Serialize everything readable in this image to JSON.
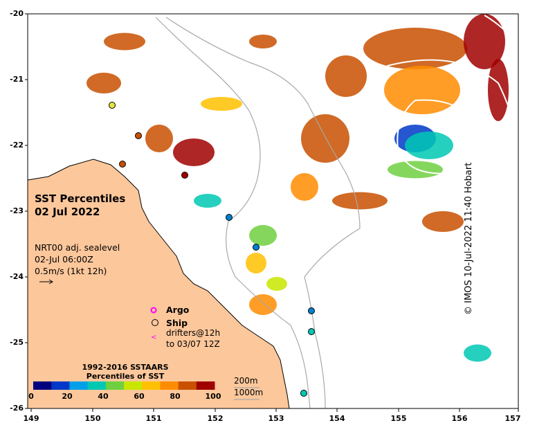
{
  "title": [
    "SST Percentiles",
    "02 Jul 2022"
  ],
  "info": {
    "line1": "NRT00 adj. sealevel",
    "line2": "02-Jul 06:00Z",
    "line3": "0.5m/s (1kt 12h)"
  },
  "legend": {
    "argo": "Argo",
    "ship": "Ship",
    "drifters_1": "drifters@12h",
    "drifters_2": "to 03/07 12Z"
  },
  "colorbar": {
    "title_1": "1992-2016 SSTAARS",
    "title_2": "Percentiles of SST",
    "labels": [
      "0",
      "20",
      "40",
      "60",
      "80",
      "100"
    ],
    "colors": [
      "#00007f",
      "#0038c8",
      "#00a0e8",
      "#00c8b4",
      "#6ed040",
      "#c8e600",
      "#ffc000",
      "#ff8c00",
      "#c85000",
      "#a00000"
    ]
  },
  "depth_contours": {
    "c200": "200m",
    "c1000": "1000m"
  },
  "axes": {
    "y_labels": [
      "-20",
      "-21",
      "-22",
      "-23",
      "-24",
      "-25",
      "-26"
    ],
    "x_labels": [
      "149",
      "150",
      "151",
      "152",
      "153",
      "154",
      "155",
      "156",
      "157"
    ]
  },
  "credit": "© IMOS 10-Jul-2022 11:40 Hobart",
  "colors": {
    "land": "#fcc79b",
    "coast": "#000000",
    "bathymetry": "#a8a8a8",
    "ssh_contour": "#ffffff",
    "argo": "#ff00ff"
  }
}
